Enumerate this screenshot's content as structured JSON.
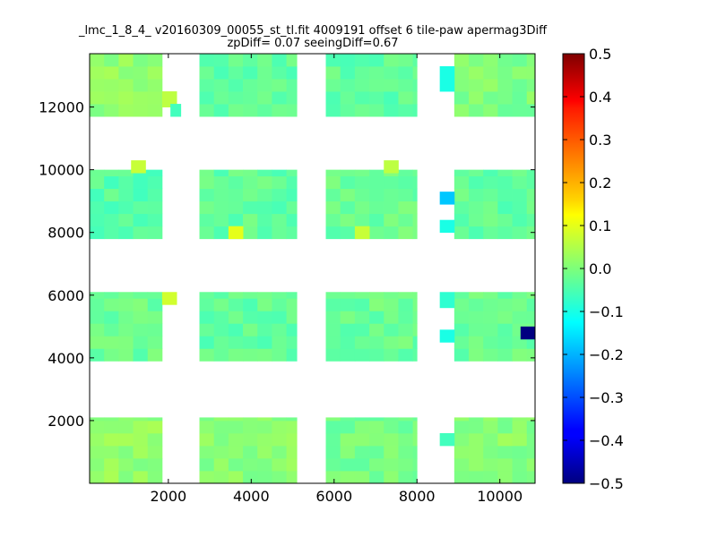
{
  "chart_data": {
    "type": "heatmap",
    "title_line1": "_lmc_1_8_4_ v20160309_00055_st_tl.fit 4009191 offset 6 tile-paw apermag3Diff",
    "title_line2": "zpDiff= 0.07 seeingDiff=0.67",
    "xlim": [
      100,
      10850
    ],
    "ylim": [
      0,
      13700
    ],
    "x_ticks": [
      2000,
      4000,
      6000,
      8000,
      10000
    ],
    "y_ticks": [
      2000,
      4000,
      6000,
      8000,
      10000,
      12000
    ],
    "colorbar": {
      "vmin": -0.5,
      "vmax": 0.5,
      "colormap": "jet",
      "ticks": [
        -0.5,
        -0.4,
        -0.3,
        -0.2,
        -0.1,
        0.0,
        0.1,
        0.2,
        0.3,
        0.4,
        0.5
      ],
      "tick_labels": [
        "−0.5",
        "−0.4",
        "−0.3",
        "−0.2",
        "−0.1",
        "0.0",
        "0.1",
        "0.2",
        "0.3",
        "0.4",
        "0.5"
      ]
    },
    "cell_size": [
      350,
      400
    ],
    "blocks": [
      {
        "x": [
          100,
          1850
        ],
        "y": [
          0,
          2100
        ],
        "value": 0.02
      },
      {
        "x": [
          2750,
          5100
        ],
        "y": [
          0,
          2100
        ],
        "value": 0.01
      },
      {
        "x": [
          5800,
          8000
        ],
        "y": [
          0,
          2100
        ],
        "value": -0.01
      },
      {
        "x": [
          8900,
          10850
        ],
        "y": [
          0,
          2100
        ],
        "value": 0.01
      },
      {
        "x": [
          100,
          1850
        ],
        "y": [
          3900,
          6100
        ],
        "value": -0.02
      },
      {
        "x": [
          2750,
          5100
        ],
        "y": [
          3900,
          6100
        ],
        "value": -0.03
      },
      {
        "x": [
          5800,
          8000
        ],
        "y": [
          3900,
          6100
        ],
        "value": -0.02
      },
      {
        "x": [
          8900,
          10850
        ],
        "y": [
          3900,
          6100
        ],
        "value": -0.02
      },
      {
        "x": [
          100,
          1850
        ],
        "y": [
          7800,
          10000
        ],
        "value": -0.04
      },
      {
        "x": [
          2750,
          5100
        ],
        "y": [
          7800,
          10000
        ],
        "value": -0.03
      },
      {
        "x": [
          5800,
          8000
        ],
        "y": [
          7800,
          10000
        ],
        "value": -0.02
      },
      {
        "x": [
          8900,
          10850
        ],
        "y": [
          7800,
          10000
        ],
        "value": -0.03
      },
      {
        "x": [
          100,
          1850
        ],
        "y": [
          11700,
          13700
        ],
        "value": 0.02
      },
      {
        "x": [
          2750,
          5100
        ],
        "y": [
          11700,
          13700
        ],
        "value": -0.03
      },
      {
        "x": [
          5800,
          8000
        ],
        "y": [
          11700,
          13700
        ],
        "value": -0.03
      },
      {
        "x": [
          8900,
          10850
        ],
        "y": [
          11700,
          13700
        ],
        "value": 0.0
      }
    ],
    "narrow_cells": [
      {
        "x": [
          8550,
          8900
        ],
        "y": [
          1200,
          1600
        ],
        "value": -0.06
      },
      {
        "x": [
          8550,
          8900
        ],
        "y": [
          4500,
          4900
        ],
        "value": -0.1
      },
      {
        "x": [
          8550,
          8900
        ],
        "y": [
          5600,
          6100
        ],
        "value": -0.08
      },
      {
        "x": [
          8550,
          8900
        ],
        "y": [
          8000,
          8400
        ],
        "value": -0.1
      },
      {
        "x": [
          8550,
          8900
        ],
        "y": [
          8900,
          9300
        ],
        "value": -0.18
      },
      {
        "x": [
          8550,
          8900
        ],
        "y": [
          12500,
          13300
        ],
        "value": -0.1
      }
    ],
    "highlight_cells": [
      {
        "x": [
          10500,
          10850
        ],
        "y": [
          4600,
          5000
        ],
        "value": -0.5
      },
      {
        "x": [
          3450,
          3800
        ],
        "y": [
          7800,
          8200
        ],
        "value": 0.1
      },
      {
        "x": [
          1850,
          2200
        ],
        "y": [
          5700,
          6100
        ],
        "value": 0.08
      },
      {
        "x": [
          1850,
          2200
        ],
        "y": [
          12000,
          12500
        ],
        "value": 0.06
      },
      {
        "x": [
          6500,
          6850
        ],
        "y": [
          7800,
          8200
        ],
        "value": 0.07
      },
      {
        "x": [
          1100,
          1450
        ],
        "y": [
          9900,
          10300
        ],
        "value": 0.07
      },
      {
        "x": [
          7200,
          7550
        ],
        "y": [
          9900,
          10300
        ],
        "value": 0.06
      },
      {
        "x": [
          2050,
          2300
        ],
        "y": [
          11700,
          12100
        ],
        "value": -0.06
      }
    ]
  }
}
